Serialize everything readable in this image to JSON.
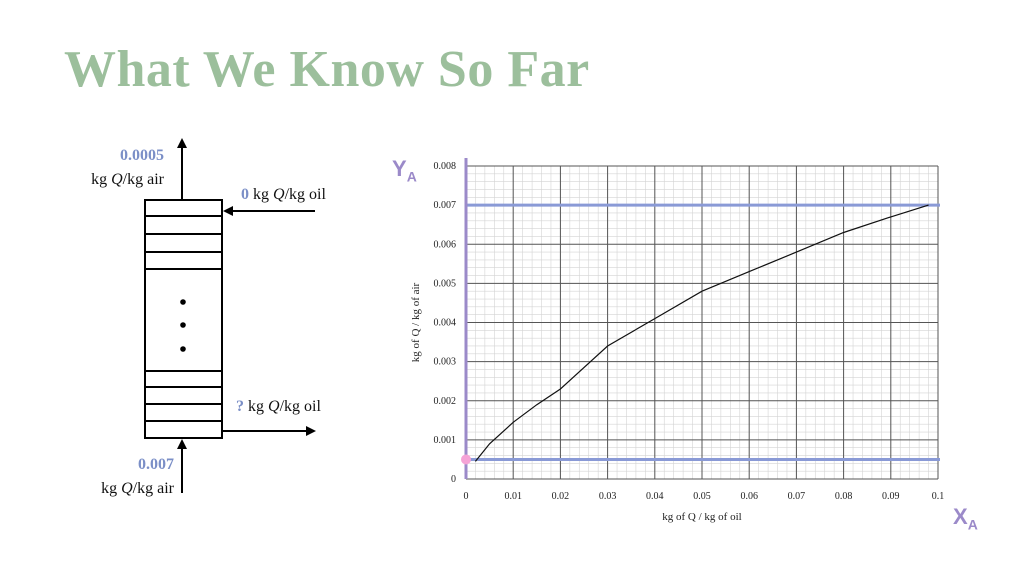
{
  "title": "What We Know So Far",
  "colors": {
    "title": "#9cbf9c",
    "value": "#7b8fc7",
    "line_color": "#8a9ad6",
    "axis_symbol": "#9b8ac9",
    "point": "#f5a3d6"
  },
  "tower": {
    "top_out_value": "0.0005",
    "top_out_unit_pre": "kg ",
    "top_out_unit_q": "Q",
    "top_out_unit_post": "/kg air",
    "top_in_value": "0",
    "top_in_unit_pre": " kg ",
    "top_in_unit_q": "Q",
    "top_in_unit_post": "/kg oil",
    "bottom_out_value": "?",
    "bottom_out_unit_pre": " kg ",
    "bottom_out_unit_q": "Q",
    "bottom_out_unit_post": "/kg oil",
    "bottom_in_value": "0.007",
    "bottom_in_unit_pre": "kg ",
    "bottom_in_unit_q": "Q",
    "bottom_in_unit_post": "/kg air",
    "ellipsis": "•\n•\n•"
  },
  "axis_symbols": {
    "y_main": "Y",
    "y_sub": "A",
    "x_main": "X",
    "x_sub": "A"
  },
  "chart_data": {
    "type": "line",
    "xlabel": "kg of Q / kg of oil",
    "ylabel": "kg of Q / kg of air",
    "xlim": [
      0,
      0.1
    ],
    "ylim": [
      0,
      0.008
    ],
    "x_ticks": [
      "0",
      "0.01",
      "0.02",
      "0.03",
      "0.04",
      "0.05",
      "0.06",
      "0.07",
      "0.08",
      "0.09",
      "0.1"
    ],
    "y_ticks": [
      "0",
      "0.001",
      "0.002",
      "0.003",
      "0.004",
      "0.005",
      "0.006",
      "0.007",
      "0.008"
    ],
    "grid": true,
    "series": [
      {
        "x": [
          0.002,
          0.005,
          0.01,
          0.015,
          0.02,
          0.03,
          0.04,
          0.05,
          0.06,
          0.07,
          0.08,
          0.09,
          0.098
        ],
        "y": [
          0.00045,
          0.0009,
          0.00145,
          0.0019,
          0.0023,
          0.0034,
          0.0041,
          0.0048,
          0.0053,
          0.0058,
          0.0063,
          0.0067,
          0.007
        ]
      }
    ],
    "hlines": [
      0.007,
      0.0005
    ],
    "vline_x": 0,
    "marker_point": {
      "x": 0,
      "y": 0.0005
    }
  }
}
